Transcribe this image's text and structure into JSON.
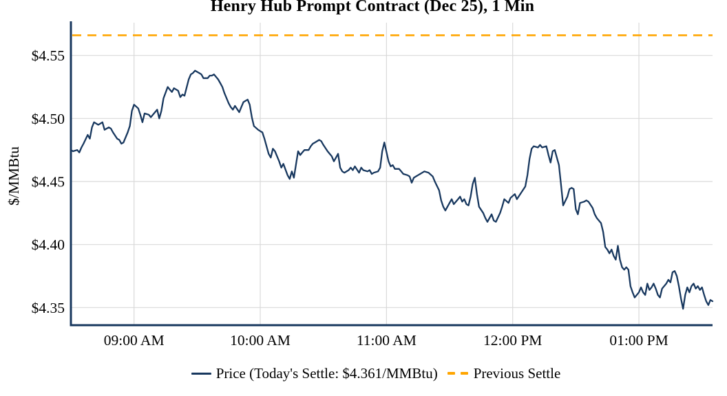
{
  "chart_data": {
    "type": "line",
    "title": "Henry Hub Prompt Contract (Dec 25), 1 Min",
    "ylabel": "$/MMBtu",
    "xlabel": "",
    "x_unit": "minutes after 08:30 AM",
    "x_range_minutes": [
      0,
      305
    ],
    "x_range_time": [
      "08:30 AM",
      "01:35 PM"
    ],
    "ylim": [
      4.336,
      4.576
    ],
    "grid": true,
    "legend_position": "bottom",
    "todays_settle": 4.361,
    "previous_settle": 4.566,
    "colors": {
      "price_line": "#17375e",
      "previous_settle_line": "#ffa500",
      "grid": "#d9d9d9",
      "axis": "#17375e",
      "text": "#000000",
      "background": "#ffffff"
    },
    "y_ticks": [
      {
        "value": 4.35,
        "label": "$4.35"
      },
      {
        "value": 4.4,
        "label": "$4.40"
      },
      {
        "value": 4.45,
        "label": "$4.45"
      },
      {
        "value": 4.5,
        "label": "$4.50"
      },
      {
        "value": 4.55,
        "label": "$4.55"
      }
    ],
    "x_ticks": [
      {
        "minute": 30,
        "label": "09:00 AM"
      },
      {
        "minute": 90,
        "label": "10:00 AM"
      },
      {
        "minute": 150,
        "label": "11:00 AM"
      },
      {
        "minute": 210,
        "label": "12:00 PM"
      },
      {
        "minute": 270,
        "label": "01:00 PM"
      }
    ],
    "series": [
      {
        "name": "Price (Today's Settle: $4.361/MMBtu)",
        "type": "line",
        "style": "solid",
        "color": "#17375e",
        "points": [
          [
            0,
            4.475
          ],
          [
            1,
            4.474
          ],
          [
            3,
            4.475
          ],
          [
            4,
            4.473
          ],
          [
            5,
            4.477
          ],
          [
            6,
            4.48
          ],
          [
            8,
            4.487
          ],
          [
            9,
            4.484
          ],
          [
            10,
            4.493
          ],
          [
            11,
            4.497
          ],
          [
            13,
            4.495
          ],
          [
            14,
            4.496
          ],
          [
            15,
            4.497
          ],
          [
            16,
            4.491
          ],
          [
            18,
            4.493
          ],
          [
            19,
            4.492
          ],
          [
            20,
            4.489
          ],
          [
            22,
            4.484
          ],
          [
            23,
            4.483
          ],
          [
            24,
            4.48
          ],
          [
            25,
            4.481
          ],
          [
            27,
            4.489
          ],
          [
            28,
            4.494
          ],
          [
            29,
            4.506
          ],
          [
            30,
            4.511
          ],
          [
            32,
            4.508
          ],
          [
            33,
            4.503
          ],
          [
            34,
            4.497
          ],
          [
            35,
            4.504
          ],
          [
            37,
            4.503
          ],
          [
            38,
            4.501
          ],
          [
            39,
            4.503
          ],
          [
            41,
            4.507
          ],
          [
            42,
            4.5
          ],
          [
            43,
            4.506
          ],
          [
            44,
            4.516
          ],
          [
            46,
            4.525
          ],
          [
            47,
            4.523
          ],
          [
            48,
            4.521
          ],
          [
            49,
            4.524
          ],
          [
            51,
            4.522
          ],
          [
            52,
            4.517
          ],
          [
            53,
            4.519
          ],
          [
            54,
            4.518
          ],
          [
            56,
            4.531
          ],
          [
            57,
            4.535
          ],
          [
            58,
            4.536
          ],
          [
            59,
            4.538
          ],
          [
            61,
            4.536
          ],
          [
            62,
            4.535
          ],
          [
            63,
            4.532
          ],
          [
            65,
            4.532
          ],
          [
            66,
            4.534
          ],
          [
            67,
            4.534
          ],
          [
            68,
            4.535
          ],
          [
            70,
            4.531
          ],
          [
            71,
            4.528
          ],
          [
            72,
            4.525
          ],
          [
            73,
            4.52
          ],
          [
            75,
            4.512
          ],
          [
            76,
            4.509
          ],
          [
            77,
            4.507
          ],
          [
            78,
            4.51
          ],
          [
            80,
            4.505
          ],
          [
            81,
            4.509
          ],
          [
            82,
            4.513
          ],
          [
            84,
            4.515
          ],
          [
            85,
            4.511
          ],
          [
            86,
            4.501
          ],
          [
            87,
            4.494
          ],
          [
            89,
            4.491
          ],
          [
            90,
            4.49
          ],
          [
            91,
            4.489
          ],
          [
            92,
            4.484
          ],
          [
            94,
            4.472
          ],
          [
            95,
            4.469
          ],
          [
            96,
            4.476
          ],
          [
            97,
            4.474
          ],
          [
            99,
            4.466
          ],
          [
            100,
            4.461
          ],
          [
            101,
            4.464
          ],
          [
            103,
            4.455
          ],
          [
            104,
            4.452
          ],
          [
            105,
            4.458
          ],
          [
            106,
            4.453
          ],
          [
            108,
            4.474
          ],
          [
            109,
            4.471
          ],
          [
            110,
            4.473
          ],
          [
            111,
            4.475
          ],
          [
            113,
            4.475
          ],
          [
            114,
            4.478
          ],
          [
            115,
            4.48
          ],
          [
            116,
            4.481
          ],
          [
            118,
            4.483
          ],
          [
            119,
            4.482
          ],
          [
            120,
            4.479
          ],
          [
            122,
            4.474
          ],
          [
            123,
            4.472
          ],
          [
            124,
            4.47
          ],
          [
            125,
            4.466
          ],
          [
            127,
            4.472
          ],
          [
            128,
            4.461
          ],
          [
            129,
            4.458
          ],
          [
            130,
            4.457
          ],
          [
            132,
            4.459
          ],
          [
            133,
            4.461
          ],
          [
            134,
            4.459
          ],
          [
            135,
            4.462
          ],
          [
            137,
            4.457
          ],
          [
            138,
            4.461
          ],
          [
            139,
            4.459
          ],
          [
            141,
            4.458
          ],
          [
            142,
            4.459
          ],
          [
            143,
            4.456
          ],
          [
            144,
            4.457
          ],
          [
            146,
            4.458
          ],
          [
            147,
            4.461
          ],
          [
            148,
            4.474
          ],
          [
            149,
            4.481
          ],
          [
            151,
            4.466
          ],
          [
            152,
            4.462
          ],
          [
            153,
            4.463
          ],
          [
            154,
            4.46
          ],
          [
            156,
            4.46
          ],
          [
            157,
            4.458
          ],
          [
            158,
            4.456
          ],
          [
            160,
            4.455
          ],
          [
            161,
            4.454
          ],
          [
            162,
            4.449
          ],
          [
            163,
            4.453
          ],
          [
            165,
            4.455
          ],
          [
            166,
            4.456
          ],
          [
            167,
            4.457
          ],
          [
            168,
            4.458
          ],
          [
            170,
            4.457
          ],
          [
            172,
            4.454
          ],
          [
            173,
            4.45
          ],
          [
            175,
            4.443
          ],
          [
            176,
            4.435
          ],
          [
            177,
            4.43
          ],
          [
            178,
            4.427
          ],
          [
            180,
            4.433
          ],
          [
            181,
            4.436
          ],
          [
            182,
            4.432
          ],
          [
            184,
            4.436
          ],
          [
            185,
            4.438
          ],
          [
            186,
            4.434
          ],
          [
            187,
            4.436
          ],
          [
            188,
            4.432
          ],
          [
            189,
            4.431
          ],
          [
            190,
            4.438
          ],
          [
            191,
            4.448
          ],
          [
            192,
            4.453
          ],
          [
            193,
            4.44
          ],
          [
            194,
            4.43
          ],
          [
            196,
            4.425
          ],
          [
            197,
            4.421
          ],
          [
            198,
            4.418
          ],
          [
            200,
            4.424
          ],
          [
            201,
            4.419
          ],
          [
            202,
            4.418
          ],
          [
            204,
            4.425
          ],
          [
            205,
            4.43
          ],
          [
            206,
            4.436
          ],
          [
            208,
            4.433
          ],
          [
            209,
            4.437
          ],
          [
            211,
            4.44
          ],
          [
            212,
            4.436
          ],
          [
            214,
            4.441
          ],
          [
            216,
            4.446
          ],
          [
            217,
            4.455
          ],
          [
            218,
            4.468
          ],
          [
            219,
            4.476
          ],
          [
            220,
            4.478
          ],
          [
            222,
            4.477
          ],
          [
            223,
            4.479
          ],
          [
            224,
            4.477
          ],
          [
            226,
            4.478
          ],
          [
            227,
            4.471
          ],
          [
            228,
            4.465
          ],
          [
            229,
            4.474
          ],
          [
            230,
            4.475
          ],
          [
            232,
            4.463
          ],
          [
            233,
            4.447
          ],
          [
            234,
            4.431
          ],
          [
            236,
            4.438
          ],
          [
            237,
            4.444
          ],
          [
            238,
            4.445
          ],
          [
            239,
            4.444
          ],
          [
            240,
            4.428
          ],
          [
            241,
            4.424
          ],
          [
            242,
            4.433
          ],
          [
            244,
            4.434
          ],
          [
            245,
            4.435
          ],
          [
            246,
            4.434
          ],
          [
            248,
            4.429
          ],
          [
            249,
            4.424
          ],
          [
            250,
            4.421
          ],
          [
            252,
            4.417
          ],
          [
            253,
            4.41
          ],
          [
            254,
            4.398
          ],
          [
            255,
            4.396
          ],
          [
            256,
            4.393
          ],
          [
            257,
            4.396
          ],
          [
            258,
            4.391
          ],
          [
            259,
            4.388
          ],
          [
            260,
            4.399
          ],
          [
            261,
            4.388
          ],
          [
            262,
            4.382
          ],
          [
            263,
            4.38
          ],
          [
            264,
            4.382
          ],
          [
            265,
            4.38
          ],
          [
            266,
            4.367
          ],
          [
            267,
            4.362
          ],
          [
            268,
            4.358
          ],
          [
            270,
            4.362
          ],
          [
            271,
            4.366
          ],
          [
            272,
            4.362
          ],
          [
            273,
            4.36
          ],
          [
            274,
            4.369
          ],
          [
            275,
            4.364
          ],
          [
            276,
            4.366
          ],
          [
            277,
            4.369
          ],
          [
            278,
            4.365
          ],
          [
            279,
            4.36
          ],
          [
            280,
            4.358
          ],
          [
            281,
            4.365
          ],
          [
            283,
            4.369
          ],
          [
            284,
            4.372
          ],
          [
            285,
            4.37
          ],
          [
            286,
            4.378
          ],
          [
            287,
            4.379
          ],
          [
            288,
            4.375
          ],
          [
            289,
            4.367
          ],
          [
            290,
            4.357
          ],
          [
            291,
            4.349
          ],
          [
            292,
            4.36
          ],
          [
            293,
            4.366
          ],
          [
            294,
            4.362
          ],
          [
            295,
            4.367
          ],
          [
            296,
            4.369
          ],
          [
            297,
            4.365
          ],
          [
            298,
            4.367
          ],
          [
            299,
            4.364
          ],
          [
            300,
            4.366
          ],
          [
            301,
            4.36
          ],
          [
            302,
            4.355
          ],
          [
            303,
            4.352
          ],
          [
            304,
            4.356
          ],
          [
            305,
            4.355
          ]
        ]
      },
      {
        "name": "Previous Settle",
        "type": "hline",
        "style": "dashed",
        "color": "#ffa500",
        "value": 4.566
      }
    ]
  }
}
